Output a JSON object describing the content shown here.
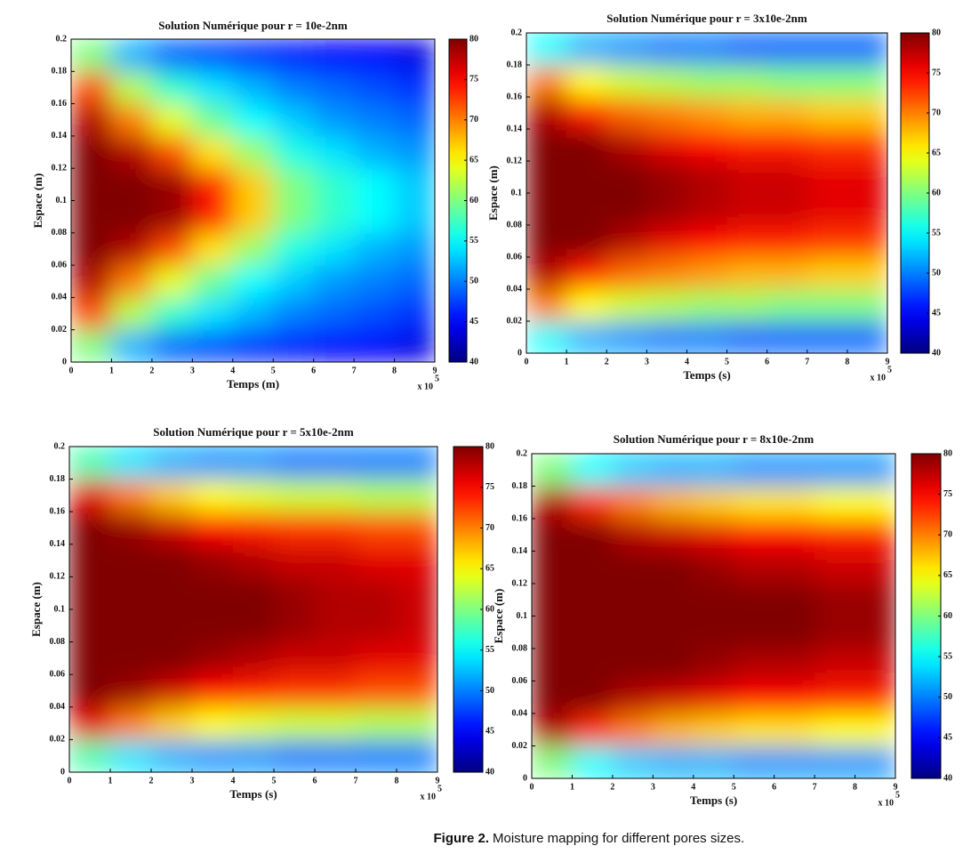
{
  "caption": {
    "label": "Figure 2.",
    "text": "Moisture mapping for different pores sizes."
  },
  "chart_data": [
    {
      "type": "heatmap",
      "title": "Solution Numérique pour r = 10e-2nm",
      "x_label": "Temps (m)",
      "y_label": "Espace (m)",
      "x_multiplier": "x 10",
      "x_multiplier_exponent": "5",
      "colormap": "jet",
      "x": [
        0.5,
        1.5,
        2.5,
        3.5,
        4.5,
        5.5,
        6.5,
        7.5,
        8.5
      ],
      "y": [
        0.01,
        0.03,
        0.05,
        0.07,
        0.09,
        0.11,
        0.13,
        0.15,
        0.17,
        0.19
      ],
      "values": [
        [
          60,
          52,
          49,
          48,
          47,
          46,
          45,
          45,
          44
        ],
        [
          72,
          62,
          57,
          54,
          52,
          50,
          49,
          48,
          47
        ],
        [
          78,
          70,
          64,
          59,
          55,
          53,
          51,
          50,
          49
        ],
        [
          80,
          78,
          72,
          66,
          61,
          56,
          54,
          52,
          51
        ],
        [
          80,
          80,
          79,
          74,
          67,
          60,
          57,
          55,
          53
        ],
        [
          80,
          80,
          79,
          74,
          67,
          60,
          57,
          55,
          53
        ],
        [
          80,
          78,
          72,
          66,
          61,
          56,
          54,
          52,
          51
        ],
        [
          78,
          70,
          64,
          59,
          55,
          53,
          51,
          50,
          49
        ],
        [
          72,
          62,
          57,
          54,
          52,
          50,
          49,
          48,
          47
        ],
        [
          60,
          52,
          49,
          48,
          47,
          46,
          45,
          45,
          44
        ]
      ],
      "xlim": [
        0,
        9
      ],
      "xticks": [
        0,
        1,
        2,
        3,
        4,
        5,
        6,
        7,
        8,
        9
      ],
      "ylim": [
        0,
        0.2
      ],
      "yticks": [
        0,
        0.02,
        0.04,
        0.06,
        0.08,
        0.1,
        0.12,
        0.14,
        0.16,
        0.18,
        0.2
      ],
      "clim": [
        40,
        80
      ],
      "cticks": [
        40,
        45,
        50,
        55,
        60,
        65,
        70,
        75,
        80
      ]
    },
    {
      "type": "heatmap",
      "title": "Solution Numérique pour r = 3x10e-2nm",
      "x_label": "Temps (s)",
      "y_label": "Espace (m)",
      "x_multiplier": "x 10",
      "x_multiplier_exponent": "5",
      "colormap": "jet",
      "x": [
        0.5,
        1.5,
        2.5,
        3.5,
        4.5,
        5.5,
        6.5,
        7.5,
        8.5
      ],
      "y": [
        0.01,
        0.03,
        0.05,
        0.07,
        0.09,
        0.11,
        0.13,
        0.15,
        0.17,
        0.19
      ],
      "values": [
        [
          55,
          52,
          51,
          50,
          50,
          49,
          49,
          49,
          49
        ],
        [
          70,
          65,
          63,
          62,
          61,
          61,
          60,
          60,
          60
        ],
        [
          78,
          74,
          71,
          70,
          69,
          68,
          68,
          67,
          67
        ],
        [
          80,
          80,
          78,
          76,
          75,
          74,
          74,
          73,
          73
        ],
        [
          80,
          80,
          80,
          79,
          78,
          77,
          77,
          76,
          76
        ],
        [
          80,
          80,
          80,
          79,
          78,
          77,
          77,
          76,
          76
        ],
        [
          80,
          80,
          78,
          76,
          75,
          74,
          74,
          73,
          73
        ],
        [
          78,
          74,
          71,
          70,
          69,
          68,
          68,
          67,
          67
        ],
        [
          70,
          65,
          63,
          62,
          61,
          61,
          60,
          60,
          60
        ],
        [
          55,
          52,
          51,
          50,
          50,
          49,
          49,
          49,
          49
        ]
      ],
      "xlim": [
        0,
        9
      ],
      "xticks": [
        0,
        1,
        2,
        3,
        4,
        5,
        6,
        7,
        8,
        9
      ],
      "ylim": [
        0,
        0.2
      ],
      "yticks": [
        0,
        0.02,
        0.04,
        0.06,
        0.08,
        0.1,
        0.12,
        0.14,
        0.16,
        0.18,
        0.2
      ],
      "clim": [
        40,
        80
      ],
      "cticks": [
        40,
        45,
        50,
        55,
        60,
        65,
        70,
        75,
        80
      ]
    },
    {
      "type": "heatmap",
      "title": "Solution Numérique pour r = 5x10e-2nm",
      "x_label": "Temps (s)",
      "y_label": "Espace (m)",
      "x_multiplier": "x 10",
      "x_multiplier_exponent": "5",
      "colormap": "jet",
      "x": [
        0.5,
        1.5,
        2.5,
        3.5,
        4.5,
        5.5,
        6.5,
        7.5,
        8.5
      ],
      "y": [
        0.01,
        0.03,
        0.05,
        0.07,
        0.09,
        0.11,
        0.13,
        0.15,
        0.17,
        0.19
      ],
      "values": [
        [
          58,
          54,
          52,
          51,
          51,
          50,
          50,
          50,
          50
        ],
        [
          76,
          70,
          67,
          65,
          64,
          63,
          63,
          62,
          62
        ],
        [
          80,
          79,
          77,
          75,
          74,
          73,
          73,
          72,
          72
        ],
        [
          80,
          80,
          80,
          79,
          78,
          77,
          77,
          76,
          76
        ],
        [
          80,
          80,
          80,
          80,
          80,
          79,
          78,
          78,
          77
        ],
        [
          80,
          80,
          80,
          80,
          80,
          79,
          78,
          78,
          77
        ],
        [
          80,
          80,
          80,
          79,
          78,
          77,
          77,
          76,
          76
        ],
        [
          80,
          79,
          77,
          75,
          74,
          73,
          73,
          72,
          72
        ],
        [
          76,
          70,
          67,
          65,
          64,
          63,
          63,
          62,
          62
        ],
        [
          58,
          54,
          52,
          51,
          51,
          50,
          50,
          50,
          50
        ]
      ],
      "xlim": [
        0,
        9
      ],
      "xticks": [
        0,
        1,
        2,
        3,
        4,
        5,
        6,
        7,
        8,
        9
      ],
      "ylim": [
        0,
        0.2
      ],
      "yticks": [
        0,
        0.02,
        0.04,
        0.06,
        0.08,
        0.1,
        0.12,
        0.14,
        0.16,
        0.18,
        0.2
      ],
      "clim": [
        40,
        80
      ],
      "cticks": [
        40,
        45,
        50,
        55,
        60,
        65,
        70,
        75,
        80
      ]
    },
    {
      "type": "heatmap",
      "title": "Solution Numérique pour r = 8x10e-2nm",
      "x_label": "Temps (s)",
      "y_label": "Espace (m)",
      "x_multiplier": "x 10",
      "x_multiplier_exponent": "5",
      "colormap": "jet",
      "x": [
        0.5,
        1.5,
        2.5,
        3.5,
        4.5,
        5.5,
        6.5,
        7.5,
        8.5
      ],
      "y": [
        0.01,
        0.03,
        0.05,
        0.07,
        0.09,
        0.11,
        0.13,
        0.15,
        0.17,
        0.19
      ],
      "values": [
        [
          60,
          55,
          53,
          52,
          52,
          51,
          51,
          51,
          51
        ],
        [
          78,
          73,
          70,
          68,
          67,
          66,
          66,
          65,
          65
        ],
        [
          80,
          80,
          78,
          77,
          76,
          75,
          75,
          74,
          74
        ],
        [
          80,
          80,
          80,
          80,
          79,
          78,
          78,
          77,
          77
        ],
        [
          80,
          80,
          80,
          80,
          80,
          80,
          80,
          79,
          79
        ],
        [
          80,
          80,
          80,
          80,
          80,
          80,
          80,
          79,
          79
        ],
        [
          80,
          80,
          80,
          80,
          79,
          78,
          78,
          77,
          77
        ],
        [
          80,
          80,
          78,
          77,
          76,
          75,
          75,
          74,
          74
        ],
        [
          78,
          73,
          70,
          68,
          67,
          66,
          66,
          65,
          65
        ],
        [
          60,
          55,
          53,
          52,
          52,
          51,
          51,
          51,
          51
        ]
      ],
      "xlim": [
        0,
        9
      ],
      "xticks": [
        0,
        1,
        2,
        3,
        4,
        5,
        6,
        7,
        8,
        9
      ],
      "ylim": [
        0,
        0.2
      ],
      "yticks": [
        0,
        0.02,
        0.04,
        0.06,
        0.08,
        0.1,
        0.12,
        0.14,
        0.16,
        0.18,
        0.2
      ],
      "clim": [
        40,
        80
      ],
      "cticks": [
        40,
        45,
        50,
        55,
        60,
        65,
        70,
        75,
        80
      ]
    }
  ]
}
